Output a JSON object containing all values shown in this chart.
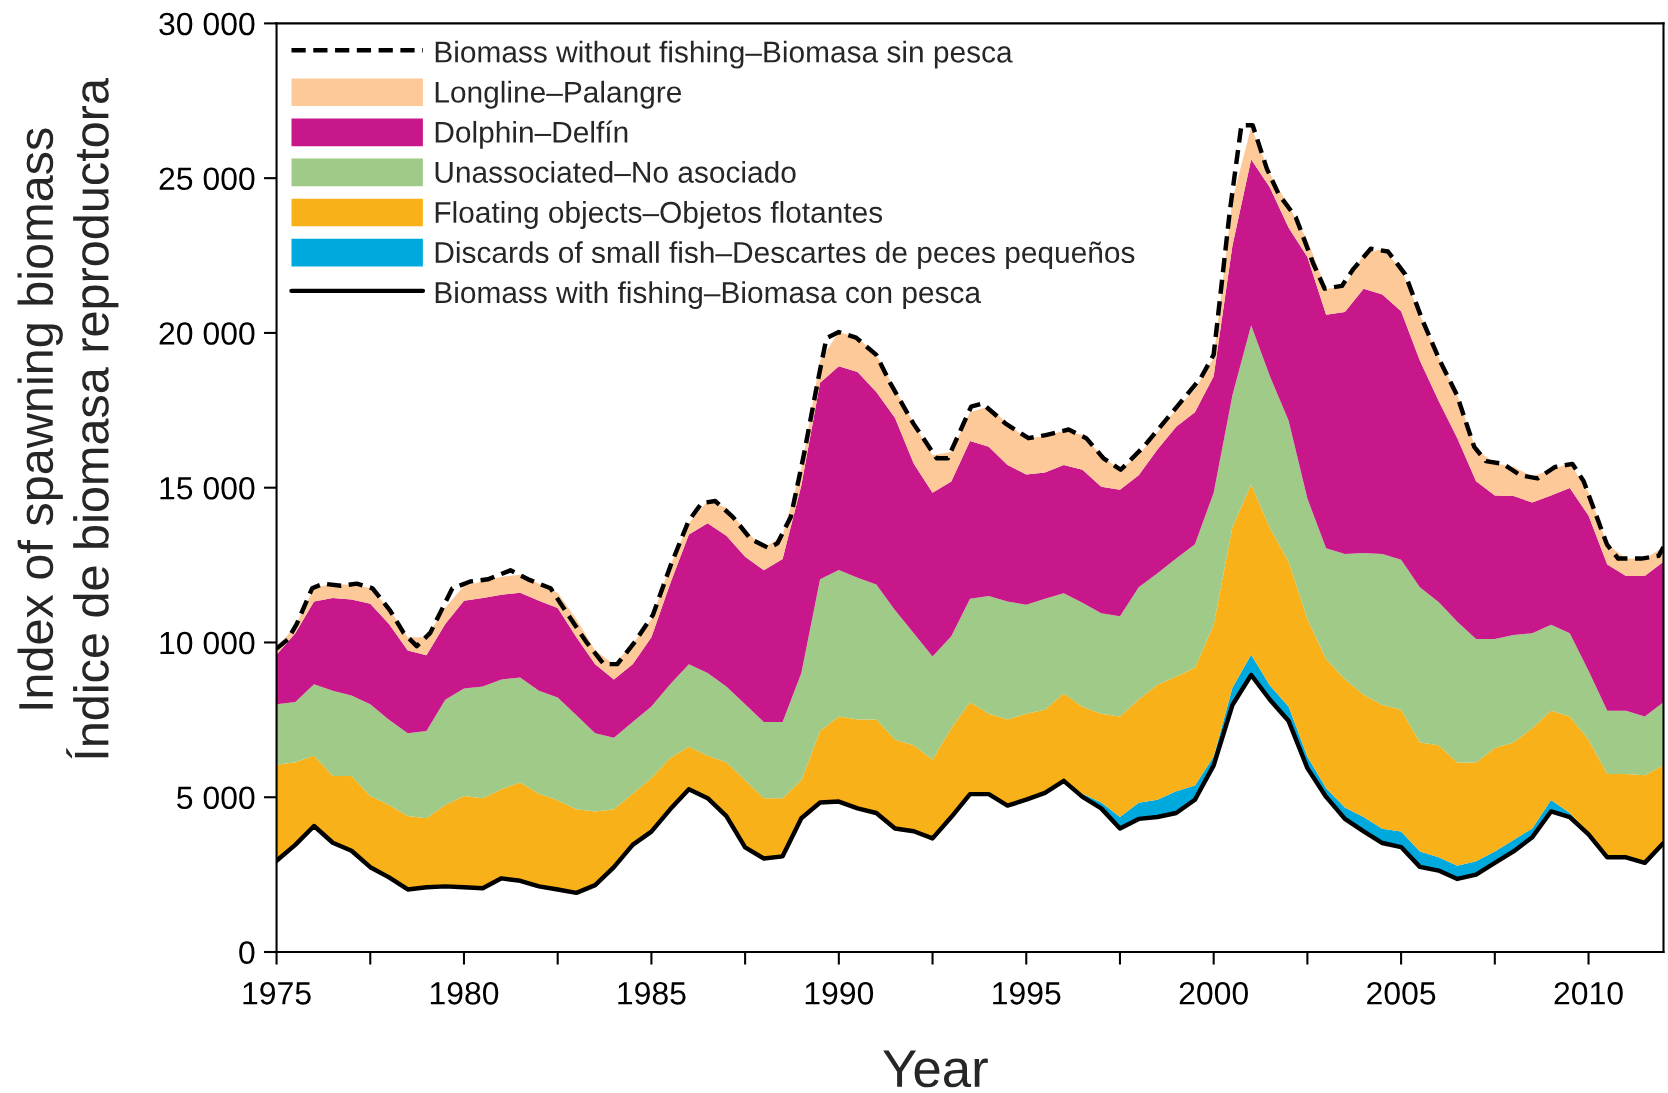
{
  "chart_data": {
    "type": "area",
    "stacked": true,
    "xlabel": "Year",
    "ylabel": "Index of spawning biomass\nÍndice de biomasa reproductora",
    "legend": "top left",
    "x": [
      1975,
      1975.5,
      1976,
      1976.5,
      1977,
      1977.5,
      1978,
      1978.5,
      1979,
      1979.5,
      1980,
      1980.5,
      1981,
      1981.5,
      1982,
      1982.5,
      1983,
      1983.5,
      1984,
      1984.5,
      1985,
      1985.5,
      1986,
      1986.5,
      1987,
      1987.5,
      1988,
      1988.5,
      1989,
      1989.5,
      1990,
      1990.5,
      1991,
      1991.5,
      1992,
      1992.5,
      1993,
      1993.5,
      1994,
      1994.5,
      1995,
      1995.5,
      1996,
      1996.5,
      1997,
      1997.5,
      1998,
      1998.5,
      1999,
      1999.5,
      2000,
      2000.5,
      2001,
      2001.5,
      2002,
      2002.5,
      2003,
      2003.5,
      2004,
      2004.5,
      2005,
      2005.5,
      2006,
      2006.5,
      2007,
      2007.5,
      2008,
      2008.5,
      2009,
      2009.5,
      2010,
      2010.5,
      2011,
      2011.5,
      2012
    ],
    "xlim": [
      1975,
      2012
    ],
    "xticks": [
      1975,
      {
        "value": 1977.5,
        "label": null
      },
      1980,
      {
        "value": 1982.5,
        "label": null
      },
      1985,
      {
        "value": 1987.5,
        "label": null
      },
      1990,
      {
        "value": 1992.5,
        "label": null
      },
      1995,
      {
        "value": 1997.5,
        "label": null
      },
      2000,
      {
        "value": 2002.5,
        "label": null
      },
      2005,
      {
        "value": 2007.5,
        "label": null
      },
      2010
    ],
    "ylim": [
      0,
      30000
    ],
    "yticks": [
      0,
      {
        "value": 5000,
        "label": "5 000"
      },
      {
        "value": 10000,
        "label": "10 000"
      },
      {
        "value": 15000,
        "label": "15 000"
      },
      {
        "value": 20000,
        "label": "20 000"
      },
      {
        "value": 25000,
        "label": "25 000"
      },
      {
        "value": 30000,
        "label": "30 000"
      }
    ],
    "series": [
      {
        "name": "Biomass with fishing–Biomasa con pesca",
        "color": "#ffffff",
        "line_style": "solid",
        "values": [
          2950,
          3460,
          4070,
          3530,
          3270,
          2740,
          2410,
          2020,
          2090,
          2120,
          2090,
          2060,
          2380,
          2300,
          2120,
          2020,
          1910,
          2160,
          2740,
          3460,
          3890,
          4610,
          5260,
          4970,
          4390,
          3380,
          3020,
          3090,
          4320,
          4830,
          4860,
          4640,
          4490,
          3990,
          3900,
          3670,
          4360,
          5100,
          5100,
          4730,
          4920,
          5140,
          5530,
          5010,
          4640,
          3990,
          4300,
          4360,
          4490,
          4920,
          6030,
          7980,
          8950,
          8150,
          7460,
          5940,
          5010,
          4300,
          3900,
          3520,
          3390,
          2750,
          2630,
          2360,
          2500,
          2880,
          3250,
          3710,
          4540,
          4360,
          3800,
          3060,
          3060,
          2880,
          3520
        ]
      },
      {
        "name": "Discards of small fish–Descartes de peces pequeños",
        "color": "#00a9dd",
        "values": [
          0,
          0,
          0,
          0,
          0,
          0,
          0,
          0,
          0,
          0,
          0,
          0,
          0,
          0,
          0,
          0,
          0,
          0,
          0,
          0,
          0,
          0,
          0,
          0,
          0,
          0,
          0,
          0,
          0,
          0,
          0,
          0,
          0,
          0,
          0,
          0,
          0,
          0,
          0,
          0,
          0,
          0,
          0,
          100,
          190,
          370,
          520,
          560,
          700,
          460,
          280,
          560,
          650,
          460,
          460,
          370,
          280,
          370,
          460,
          460,
          500,
          500,
          430,
          430,
          430,
          370,
          370,
          280,
          370,
          130,
          60,
          0,
          0,
          0,
          0
        ]
      },
      {
        "name": "Floating objects–Objetos flotantes",
        "color": "#f9b11a",
        "values": [
          3100,
          2670,
          2270,
          2160,
          2420,
          2300,
          2340,
          2370,
          2230,
          2630,
          2950,
          2910,
          2880,
          3180,
          2990,
          2880,
          2700,
          2380,
          1870,
          1650,
          1730,
          1660,
          1370,
          1370,
          1740,
          2170,
          1950,
          1880,
          1230,
          2310,
          2750,
          2870,
          3020,
          2870,
          2780,
          2540,
          2870,
          2970,
          2600,
          2780,
          2780,
          2690,
          2820,
          2810,
          2870,
          3250,
          3340,
          3710,
          3710,
          3800,
          4260,
          5190,
          5500,
          5090,
          4690,
          4450,
          4170,
          4140,
          3950,
          4000,
          3940,
          3520,
          3620,
          3330,
          3190,
          3340,
          3150,
          3240,
          2880,
          3120,
          3000,
          2690,
          2690,
          2830,
          2510
        ]
      },
      {
        "name": "Unassociated–No asociado",
        "color": "#a0ca88",
        "values": [
          1950,
          1950,
          2310,
          2750,
          2600,
          2960,
          2750,
          2680,
          2820,
          3400,
          3470,
          3610,
          3540,
          3390,
          3330,
          3320,
          3040,
          2530,
          2310,
          2320,
          2310,
          2380,
          2670,
          2670,
          2450,
          2450,
          2460,
          2460,
          3460,
          4900,
          4730,
          4580,
          4360,
          4180,
          3620,
          3340,
          2970,
          3340,
          3800,
          3810,
          3520,
          3580,
          3240,
          3360,
          3240,
          3240,
          3620,
          3610,
          3810,
          3990,
          4270,
          4260,
          5150,
          4900,
          4550,
          3890,
          3580,
          4050,
          4580,
          4880,
          4840,
          5010,
          4630,
          4550,
          3990,
          3520,
          3470,
          3070,
          2780,
          2690,
          2230,
          2040,
          2040,
          1900,
          2040
        ]
      },
      {
        "name": "Dolphin–Delfín",
        "color": "#c8178a",
        "values": [
          1600,
          2220,
          2670,
          3000,
          3100,
          3250,
          3100,
          2670,
          2450,
          2450,
          2840,
          2860,
          2740,
          2740,
          2910,
          2890,
          2520,
          2230,
          1880,
          1870,
          2240,
          3250,
          4190,
          4840,
          4870,
          4770,
          4900,
          5270,
          6060,
          6350,
          6580,
          6650,
          6220,
          6210,
          5470,
          5290,
          5000,
          5100,
          4820,
          4410,
          4210,
          4080,
          4140,
          4300,
          4090,
          4080,
          3620,
          3990,
          4260,
          4270,
          3760,
          4830,
          5350,
          6100,
          6240,
          7800,
          7550,
          7820,
          8540,
          8380,
          8030,
          7330,
          6500,
          5930,
          5100,
          4640,
          4490,
          4220,
          4180,
          4690,
          5010,
          4730,
          4360,
          4540,
          4540
        ]
      },
      {
        "name": "Longline–Palangre",
        "color": "#fdc998",
        "values": [
          200,
          250,
          440,
          460,
          470,
          510,
          500,
          430,
          580,
          510,
          480,
          530,
          580,
          580,
          550,
          500,
          580,
          440,
          500,
          650,
          580,
          580,
          360,
          720,
          900,
          860,
          720,
          750,
          570,
          720,
          1110,
          1110,
          1200,
          930,
          1300,
          1210,
          950,
          930,
          1300,
          1340,
          1170,
          1170,
          1110,
          1120,
          1020,
          650,
          650,
          560,
          560,
          740,
          600,
          1480,
          1050,
          450,
          700,
          550,
          830,
          840,
          1110,
          1480,
          1370,
          1480,
          1390,
          1390,
          1020,
          1050,
          940,
          840,
          830,
          810,
          750,
          650,
          560,
          560,
          470
        ]
      },
      {
        "name": "Biomass without fishing–Biomasa sin pesca",
        "type": "line",
        "line_style": "dashed",
        "color": "#000000",
        "x": [
          1975,
          1975.3,
          1975.54,
          1975.95,
          1976.25,
          1976.72,
          1977.14,
          1977.56,
          1978.03,
          1978.39,
          1978.74,
          1979.1,
          1979.69,
          1980.17,
          1980.64,
          1981.24,
          1981.71,
          1982.31,
          1982.78,
          1983.26,
          1983.73,
          1984.09,
          1984.56,
          1985.04,
          1985.51,
          1985.99,
          1986.34,
          1986.7,
          1987.17,
          1987.65,
          1988.13,
          1988.36,
          1988.72,
          1989.07,
          1989.43,
          1989.67,
          1990,
          1990.46,
          1991,
          1991.38,
          1991.99,
          1992.61,
          1992.91,
          1993.53,
          1993.83,
          1994.45,
          1995.06,
          1995.52,
          1996.13,
          1996.6,
          1997.06,
          1997.52,
          1998.13,
          1998.9,
          1999.66,
          2000,
          2000.43,
          2000.74,
          2001.04,
          2001.42,
          2001.73,
          2002.19,
          2002.65,
          2002.96,
          2003.42,
          2003.73,
          2004.19,
          2004.65,
          2005.11,
          2005.57,
          2006.03,
          2006.49,
          2006.95,
          2007.26,
          2007.72,
          2008.18,
          2008.64,
          2009.11,
          2009.57,
          2009.87,
          2010.49,
          2010.79,
          2011.41,
          2011.87,
          2012
        ],
        "values": [
          9800,
          10100,
          10600,
          11750,
          11900,
          11830,
          11900,
          11750,
          11030,
          10310,
          9880,
          10310,
          11750,
          11970,
          12040,
          12330,
          12040,
          11750,
          10890,
          10020,
          9300,
          9300,
          10020,
          10890,
          12480,
          13920,
          14500,
          14570,
          14060,
          13340,
          13050,
          13200,
          14060,
          16080,
          18390,
          19830,
          20030,
          19850,
          19290,
          18360,
          17070,
          15950,
          15950,
          17620,
          17720,
          17070,
          16600,
          16700,
          16880,
          16600,
          15950,
          15580,
          16320,
          17440,
          18550,
          19300,
          23930,
          26710,
          26710,
          25300,
          24490,
          23740,
          22260,
          21430,
          21520,
          22070,
          22720,
          22630,
          21890,
          20410,
          19110,
          17990,
          16320,
          15860,
          15770,
          15400,
          15300,
          15670,
          15770,
          15210,
          13170,
          12710,
          12710,
          12800,
          13080
        ]
      }
    ]
  }
}
